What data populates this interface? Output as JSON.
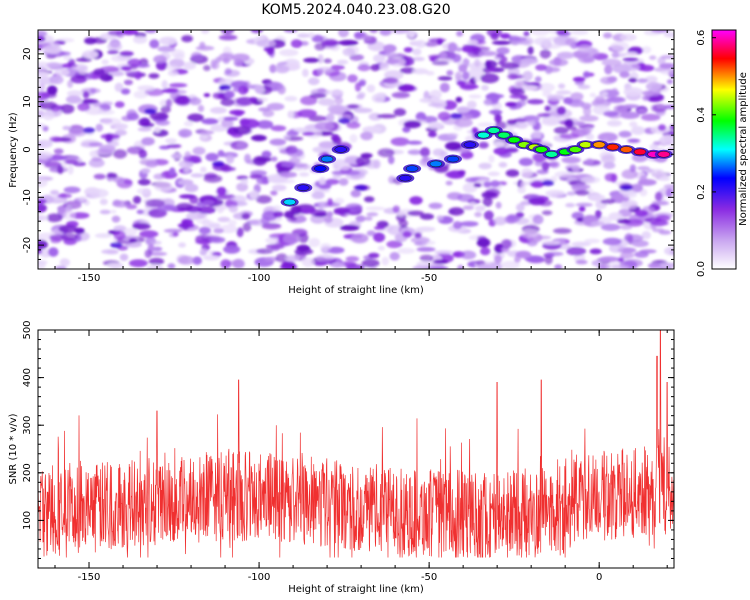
{
  "chart_data": [
    {
      "type": "heatmap",
      "title": "KOM5.2024.040.23.08.G20",
      "xlabel": "Height of straight line (km)",
      "ylabel": "Frequency (Hz)",
      "xlim": [
        -165,
        22
      ],
      "ylim": [
        -25,
        25
      ],
      "xticks": [
        -150,
        -100,
        -50,
        0
      ],
      "yticks": [
        -20,
        -10,
        0,
        10,
        20
      ],
      "grid": false,
      "colorbar": {
        "label": "Normalized spectral amplitude",
        "range": [
          0.0,
          0.62
        ],
        "ticks": [
          0.0,
          0.2,
          0.4,
          0.6
        ],
        "colormap": [
          "#ffffff",
          "#8a2be2",
          "#0000ff",
          "#00ffff",
          "#00ff00",
          "#ffff00",
          "#ff0000",
          "#ff00ff"
        ]
      },
      "signal_track": {
        "description_of_points": "height_km, frequency_hz, amplitude",
        "points": [
          [
            -91,
            -11,
            0.25
          ],
          [
            -87,
            -8,
            0.15
          ],
          [
            -82,
            -4,
            0.18
          ],
          [
            -80,
            -2,
            0.22
          ],
          [
            -76,
            0,
            0.15
          ],
          [
            -57,
            -6,
            0.15
          ],
          [
            -55,
            -4,
            0.2
          ],
          [
            -48,
            -3,
            0.22
          ],
          [
            -43,
            -2,
            0.2
          ],
          [
            -38,
            1,
            0.15
          ],
          [
            -34,
            3,
            0.28
          ],
          [
            -31,
            4,
            0.3
          ],
          [
            -28,
            3,
            0.32
          ],
          [
            -25,
            2,
            0.35
          ],
          [
            -22,
            1,
            0.4
          ],
          [
            -19,
            0.5,
            0.42
          ],
          [
            -17,
            0,
            0.36
          ],
          [
            -14,
            -1,
            0.3
          ],
          [
            -10,
            -0.5,
            0.35
          ],
          [
            -7,
            0,
            0.38
          ],
          [
            -4,
            1,
            0.42
          ],
          [
            0,
            1,
            0.48
          ],
          [
            4,
            0.5,
            0.52
          ],
          [
            8,
            0,
            0.5
          ],
          [
            12,
            -0.5,
            0.55
          ],
          [
            16,
            -1,
            0.6
          ],
          [
            19,
            -1,
            0.58
          ]
        ]
      }
    },
    {
      "type": "line",
      "title": "",
      "xlabel": "Height of straight line (km)",
      "ylabel": "SNR (10 * v/v)",
      "xlim": [
        -165,
        22
      ],
      "ylim": [
        0,
        500
      ],
      "xticks": [
        -150,
        -100,
        -50,
        0
      ],
      "yticks": [
        100,
        200,
        300,
        400,
        500
      ],
      "grid": false,
      "series_color": "#f03030",
      "series": [
        {
          "name": "",
          "summary": {
            "points": 1800,
            "typical_band": [
              50,
              220
            ],
            "max_peak": [
              18,
              500
            ],
            "notable_peaks": [
              [
                -106,
                395
              ],
              [
                -30,
                390
              ],
              [
                -17,
                395
              ],
              [
                17,
                445
              ],
              [
                20,
                390
              ],
              [
                -130,
                330
              ]
            ]
          }
        }
      ]
    }
  ]
}
